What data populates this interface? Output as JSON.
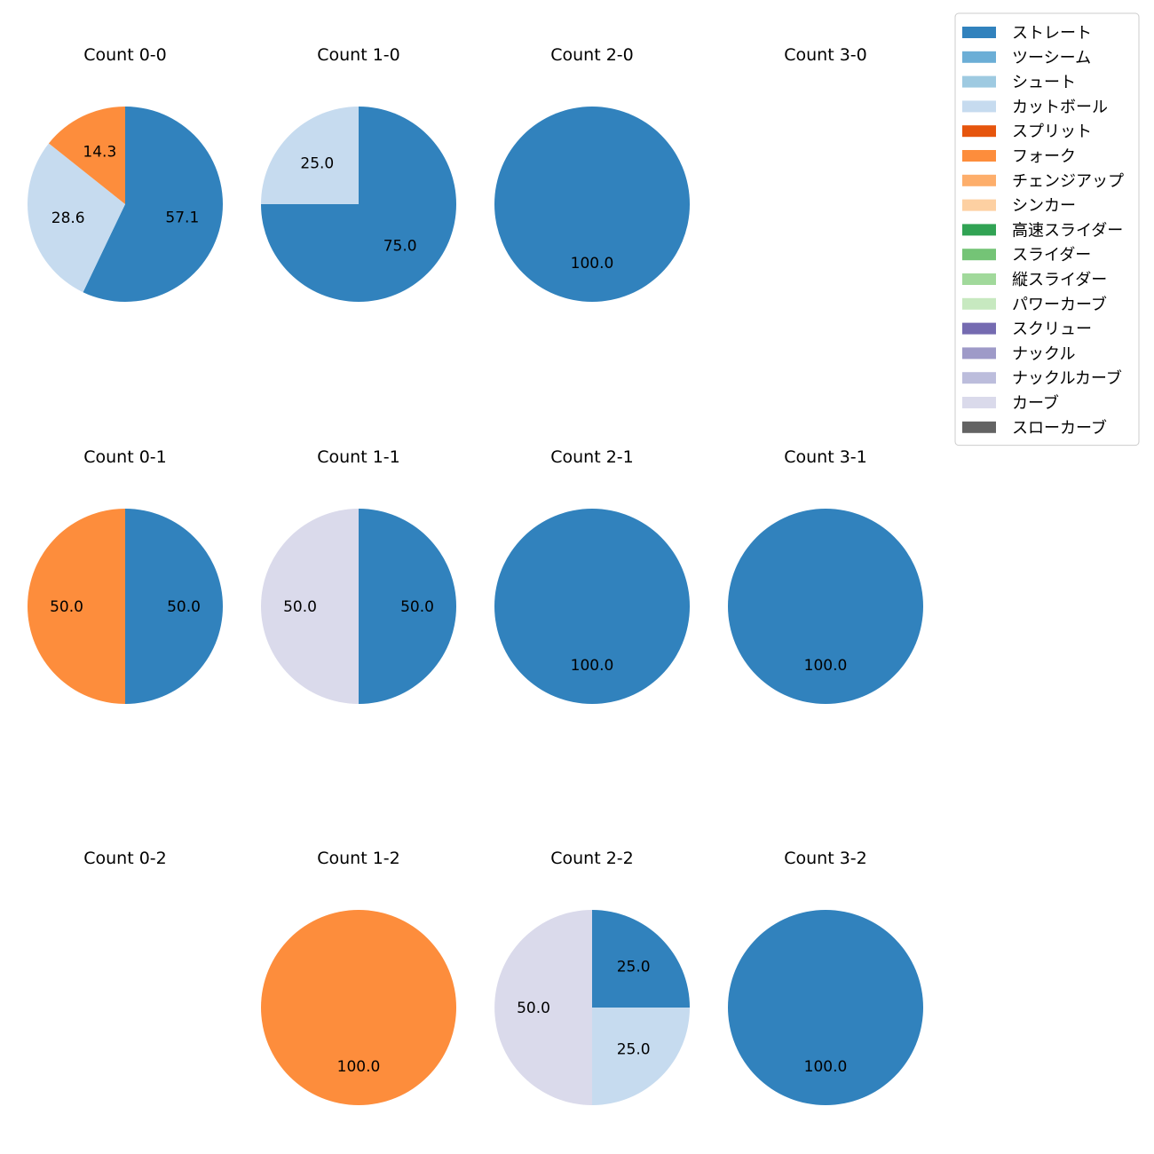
{
  "chart_data": {
    "type": "pie",
    "legend": {
      "placement": "top-right",
      "entries": [
        {
          "label": "ストレート",
          "color": "#3182bd"
        },
        {
          "label": "ツーシーム",
          "color": "#6baed6"
        },
        {
          "label": "シュート",
          "color": "#9ecae1"
        },
        {
          "label": "カットボール",
          "color": "#c6dbef"
        },
        {
          "label": "スプリット",
          "color": "#e6550d"
        },
        {
          "label": "フォーク",
          "color": "#fd8d3c"
        },
        {
          "label": "チェンジアップ",
          "color": "#fdae6b"
        },
        {
          "label": "シンカー",
          "color": "#fdd0a2"
        },
        {
          "label": "高速スライダー",
          "color": "#31a354"
        },
        {
          "label": "スライダー",
          "color": "#74c476"
        },
        {
          "label": "縦スライダー",
          "color": "#a1d99b"
        },
        {
          "label": "パワーカーブ",
          "color": "#c7e9c0"
        },
        {
          "label": "スクリュー",
          "color": "#756bb1"
        },
        {
          "label": "ナックル",
          "color": "#9e9ac8"
        },
        {
          "label": "ナックルカーブ",
          "color": "#bcbddc"
        },
        {
          "label": "カーブ",
          "color": "#dadaeb"
        },
        {
          "label": "スローカーブ",
          "color": "#636363"
        }
      ]
    },
    "pies": [
      {
        "title": "Count 0-0",
        "slices": [
          {
            "pitch": "ストレート",
            "value": 57.1
          },
          {
            "pitch": "カットボール",
            "value": 28.6
          },
          {
            "pitch": "フォーク",
            "value": 14.3
          }
        ]
      },
      {
        "title": "Count 1-0",
        "slices": [
          {
            "pitch": "ストレート",
            "value": 75.0
          },
          {
            "pitch": "カットボール",
            "value": 25.0
          }
        ]
      },
      {
        "title": "Count 2-0",
        "slices": [
          {
            "pitch": "ストレート",
            "value": 100.0
          }
        ]
      },
      {
        "title": "Count 3-0",
        "slices": []
      },
      {
        "title": "Count 0-1",
        "slices": [
          {
            "pitch": "ストレート",
            "value": 50.0
          },
          {
            "pitch": "フォーク",
            "value": 50.0
          }
        ]
      },
      {
        "title": "Count 1-1",
        "slices": [
          {
            "pitch": "ストレート",
            "value": 50.0
          },
          {
            "pitch": "カーブ",
            "value": 50.0
          }
        ]
      },
      {
        "title": "Count 2-1",
        "slices": [
          {
            "pitch": "ストレート",
            "value": 100.0
          }
        ]
      },
      {
        "title": "Count 3-1",
        "slices": [
          {
            "pitch": "ストレート",
            "value": 100.0
          }
        ]
      },
      {
        "title": "Count 0-2",
        "slices": []
      },
      {
        "title": "Count 1-2",
        "slices": [
          {
            "pitch": "フォーク",
            "value": 100.0
          }
        ]
      },
      {
        "title": "Count 2-2",
        "slices": [
          {
            "pitch": "ストレート",
            "value": 25.0
          },
          {
            "pitch": "カットボール",
            "value": 25.0
          },
          {
            "pitch": "カーブ",
            "value": 50.0
          }
        ]
      },
      {
        "title": "Count 3-2",
        "slices": [
          {
            "pitch": "ストレート",
            "value": 100.0
          }
        ]
      }
    ]
  }
}
